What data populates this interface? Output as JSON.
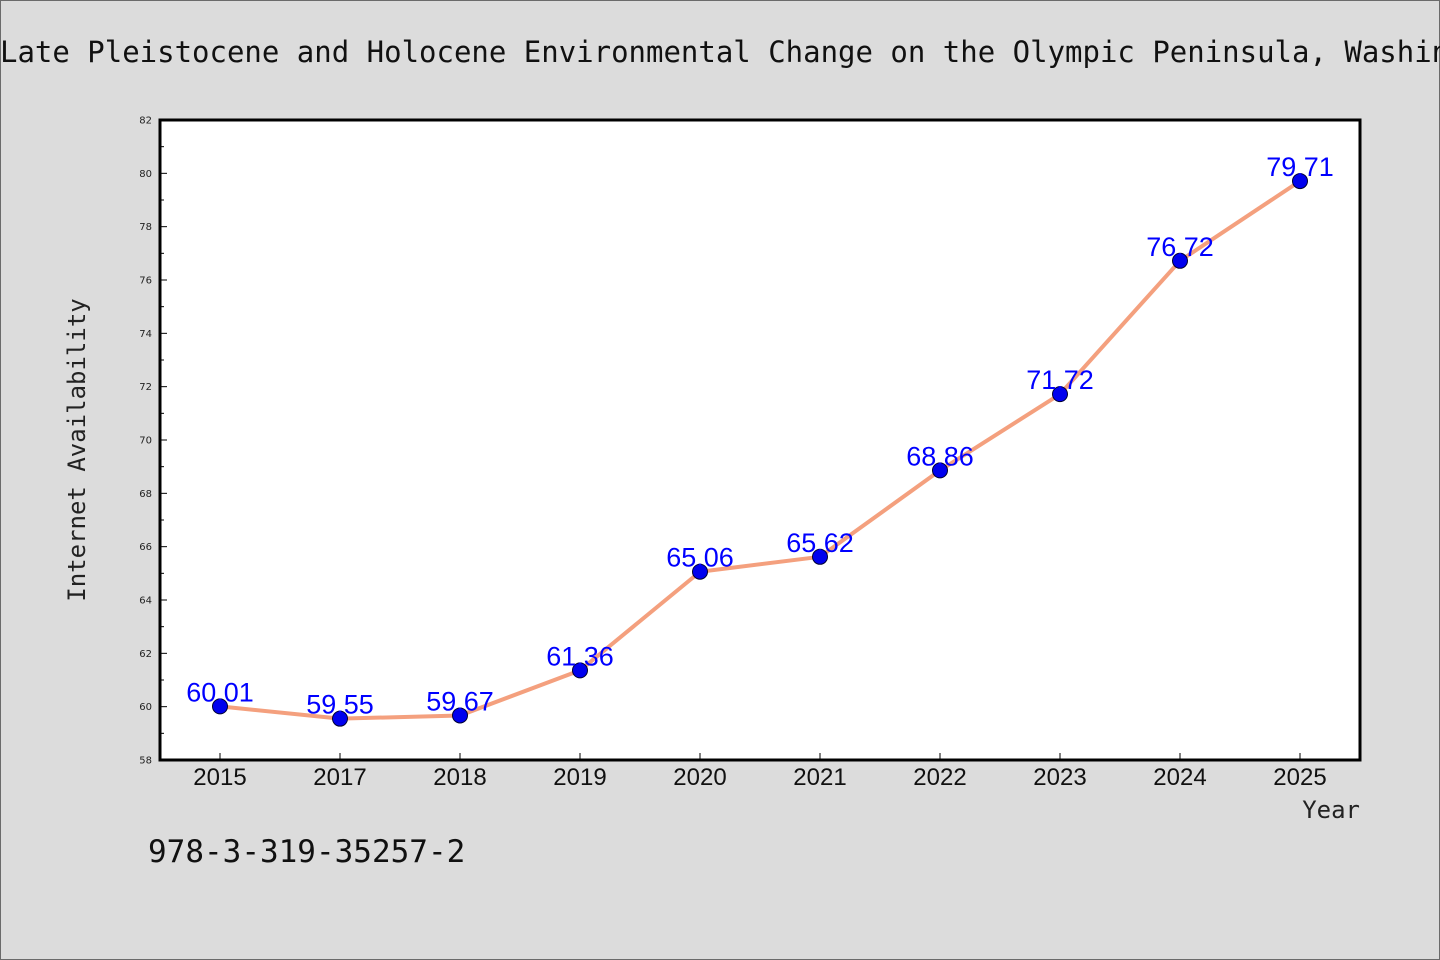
{
  "chart_data": {
    "type": "line",
    "title": "Late Pleistocene and Holocene Environmental Change on the Olympic Peninsula, Washington",
    "xlabel": "Year",
    "ylabel": "Internet Availability",
    "categories": [
      "2015",
      "2017",
      "2018",
      "2019",
      "2020",
      "2021",
      "2022",
      "2023",
      "2024",
      "2025"
    ],
    "series": [
      {
        "values": [
          60.01,
          59.55,
          59.67,
          61.36,
          65.06,
          65.62,
          68.86,
          71.72,
          76.72,
          79.71
        ],
        "data_labels": [
          "60.01",
          "59.55",
          "59.67",
          "61.36",
          "65.06",
          "65.62",
          "68.86",
          "71.72",
          "76.72",
          "79.71"
        ]
      }
    ],
    "ylim": [
      58,
      82
    ],
    "yticks": [
      "58",
      "60",
      "62",
      "64",
      "66",
      "68",
      "70",
      "72",
      "74",
      "76",
      "78",
      "80",
      "82"
    ],
    "grid": false,
    "legend": "none",
    "line_color": "#f4a07e",
    "marker_color": "#0000ee",
    "label_color": "#0000ff"
  },
  "footer": {
    "isbn": "978-3-319-35257-2"
  }
}
